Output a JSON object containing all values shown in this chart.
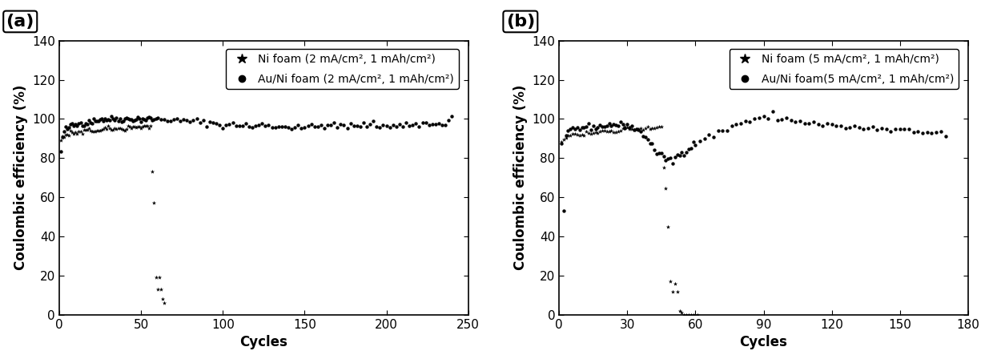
{
  "panel_a": {
    "label": "(a)",
    "xlabel": "Cycles",
    "ylabel": "Coulombic efficiency (%)",
    "xlim": [
      0,
      250
    ],
    "ylim": [
      0,
      140
    ],
    "xticks": [
      0,
      50,
      100,
      150,
      200,
      250
    ],
    "yticks": [
      0,
      20,
      40,
      60,
      80,
      100,
      120,
      140
    ],
    "legend1": "Ni foam (2 mA/cm², 1 mAh/cm²)",
    "legend2": "Au/Ni foam (2 mA/cm², 1 mAh/cm²)",
    "ni_x": [
      1,
      2,
      3,
      4,
      5,
      6,
      7,
      8,
      9,
      10,
      11,
      12,
      13,
      14,
      15,
      16,
      17,
      18,
      19,
      20,
      21,
      22,
      23,
      24,
      25,
      26,
      27,
      28,
      29,
      30,
      31,
      32,
      33,
      34,
      35,
      36,
      37,
      38,
      39,
      40,
      41,
      42,
      43,
      44,
      45,
      46,
      47,
      48,
      49,
      50,
      51,
      52,
      53,
      54,
      55,
      56,
      57,
      58,
      59,
      60,
      61,
      62,
      63,
      64
    ],
    "ni_y": [
      89,
      91,
      91,
      92,
      92,
      92,
      93,
      93,
      93,
      93,
      93,
      93,
      93,
      93,
      94,
      94,
      94,
      94,
      94,
      94,
      94,
      94,
      94,
      94,
      94,
      94,
      95,
      95,
      95,
      95,
      95,
      95,
      95,
      95,
      95,
      95,
      95,
      95,
      95,
      95,
      95,
      96,
      96,
      96,
      96,
      96,
      96,
      96,
      96,
      96,
      96,
      96,
      96,
      96,
      96,
      97,
      73,
      57,
      19,
      13,
      19,
      13,
      8,
      6
    ],
    "au_x": [
      1,
      2,
      3,
      4,
      5,
      6,
      7,
      8,
      9,
      10,
      11,
      12,
      13,
      14,
      15,
      16,
      17,
      18,
      19,
      20,
      21,
      22,
      23,
      24,
      25,
      26,
      27,
      28,
      29,
      30,
      31,
      32,
      33,
      34,
      35,
      36,
      37,
      38,
      39,
      40,
      41,
      42,
      43,
      44,
      45,
      46,
      47,
      48,
      49,
      50,
      51,
      52,
      53,
      54,
      55,
      56,
      57,
      58,
      59,
      60,
      62,
      64,
      66,
      68,
      70,
      72,
      74,
      76,
      78,
      80,
      82,
      84,
      86,
      88,
      90,
      92,
      94,
      96,
      98,
      100,
      102,
      104,
      106,
      108,
      110,
      112,
      114,
      116,
      118,
      120,
      122,
      124,
      126,
      128,
      130,
      132,
      134,
      136,
      138,
      140,
      142,
      144,
      146,
      148,
      150,
      152,
      154,
      156,
      158,
      160,
      162,
      164,
      166,
      168,
      170,
      172,
      174,
      176,
      178,
      180,
      182,
      184,
      186,
      188,
      190,
      192,
      194,
      196,
      198,
      200,
      202,
      204,
      206,
      208,
      210,
      212,
      214,
      216,
      218,
      220,
      222,
      224,
      226,
      228,
      230,
      232,
      234,
      236,
      238,
      240
    ],
    "au_y": [
      83,
      91,
      93,
      95,
      95,
      96,
      96,
      97,
      97,
      97,
      97,
      98,
      98,
      98,
      98,
      98,
      98,
      99,
      99,
      99,
      99,
      99,
      99,
      100,
      100,
      100,
      100,
      100,
      100,
      100,
      100,
      100,
      100,
      100,
      100,
      100,
      100,
      100,
      100,
      100,
      100,
      100,
      100,
      100,
      100,
      100,
      100,
      100,
      100,
      100,
      100,
      100,
      100,
      100,
      100,
      100,
      100,
      100,
      100,
      100,
      100,
      100,
      100,
      100,
      99,
      99,
      99,
      99,
      99,
      99,
      99,
      99,
      98,
      98,
      98,
      98,
      98,
      98,
      97,
      97,
      97,
      97,
      97,
      97,
      97,
      97,
      97,
      96,
      96,
      96,
      97,
      97,
      97,
      97,
      96,
      97,
      96,
      96,
      96,
      96,
      96,
      96,
      97,
      96,
      96,
      96,
      96,
      96,
      96,
      97,
      97,
      97,
      97,
      96,
      96,
      97,
      97,
      96,
      97,
      96,
      96,
      97,
      97,
      97,
      97,
      97,
      97,
      96,
      97,
      97,
      97,
      97,
      97,
      97,
      97,
      97,
      97,
      97,
      97,
      97,
      98,
      97,
      98,
      97,
      97,
      97,
      98,
      98,
      99,
      101
    ]
  },
  "panel_b": {
    "label": "(b)",
    "xlabel": "Cycles",
    "ylabel": "Coulombic efficiency (%)",
    "xlim": [
      0,
      180
    ],
    "ylim": [
      0,
      140
    ],
    "xticks": [
      0,
      30,
      60,
      90,
      120,
      150,
      180
    ],
    "yticks": [
      0,
      20,
      40,
      60,
      80,
      100,
      120,
      140
    ],
    "legend1": "Ni foam (5 mA/cm², 1 mAh/cm²)",
    "legend2": "Au/Ni foam(5 mA/cm², 1 mAh/cm²)",
    "ni_x": [
      1,
      2,
      3,
      4,
      5,
      6,
      7,
      8,
      9,
      10,
      11,
      12,
      13,
      14,
      15,
      16,
      17,
      18,
      19,
      20,
      21,
      22,
      23,
      24,
      25,
      26,
      27,
      28,
      29,
      30,
      31,
      32,
      33,
      34,
      35,
      36,
      37,
      38,
      39,
      40,
      41,
      42,
      43,
      44,
      45,
      46,
      47,
      48,
      49,
      50,
      51,
      52,
      53,
      54,
      55,
      56,
      57,
      58,
      59,
      60,
      61
    ],
    "ni_y": [
      87,
      90,
      91,
      91,
      91,
      92,
      92,
      92,
      92,
      92,
      92,
      93,
      93,
      93,
      93,
      93,
      93,
      94,
      94,
      94,
      94,
      94,
      94,
      94,
      94,
      94,
      94,
      95,
      95,
      95,
      95,
      95,
      95,
      95,
      95,
      95,
      95,
      95,
      95,
      95,
      95,
      95,
      96,
      96,
      96,
      75,
      65,
      45,
      17,
      12,
      16,
      12,
      2,
      1,
      0,
      0,
      0,
      0,
      0,
      0,
      0
    ],
    "au_x": [
      1,
      2,
      3,
      4,
      5,
      6,
      7,
      8,
      9,
      10,
      11,
      12,
      13,
      14,
      15,
      16,
      17,
      18,
      19,
      20,
      21,
      22,
      23,
      24,
      25,
      26,
      27,
      28,
      29,
      30,
      31,
      32,
      33,
      34,
      35,
      36,
      37,
      38,
      39,
      40,
      41,
      42,
      43,
      44,
      45,
      46,
      47,
      48,
      49,
      50,
      51,
      52,
      53,
      54,
      55,
      56,
      57,
      58,
      59,
      60,
      62,
      64,
      66,
      68,
      70,
      72,
      74,
      76,
      78,
      80,
      82,
      84,
      86,
      88,
      90,
      92,
      94,
      96,
      98,
      100,
      102,
      104,
      106,
      108,
      110,
      112,
      114,
      116,
      118,
      120,
      122,
      124,
      126,
      128,
      130,
      132,
      134,
      136,
      138,
      140,
      142,
      144,
      146,
      148,
      150,
      152,
      154,
      156,
      158,
      160,
      162,
      164,
      166,
      168,
      170
    ],
    "au_y": [
      87,
      50,
      91,
      93,
      94,
      95,
      95,
      95,
      95,
      96,
      96,
      96,
      96,
      96,
      96,
      96,
      96,
      96,
      96,
      97,
      97,
      97,
      97,
      97,
      97,
      97,
      97,
      97,
      97,
      97,
      96,
      96,
      95,
      95,
      94,
      93,
      92,
      91,
      90,
      88,
      86,
      84,
      83,
      82,
      81,
      80,
      80,
      80,
      79,
      78,
      80,
      81,
      82,
      83,
      84,
      84,
      85,
      86,
      87,
      88,
      89,
      90,
      91,
      92,
      93,
      94,
      95,
      96,
      97,
      98,
      99,
      99,
      100,
      100,
      100,
      101,
      102,
      101,
      100,
      100,
      99,
      99,
      99,
      98,
      98,
      98,
      97,
      97,
      97,
      97,
      96,
      96,
      96,
      96,
      96,
      95,
      95,
      95,
      95,
      95,
      95,
      95,
      94,
      94,
      94,
      94,
      94,
      93,
      93,
      93,
      93,
      93,
      93,
      93,
      92
    ]
  },
  "bg_color": "#ffffff",
  "fontsize_label": 12,
  "fontsize_tick": 11,
  "fontsize_legend": 10,
  "fontsize_panel": 16
}
